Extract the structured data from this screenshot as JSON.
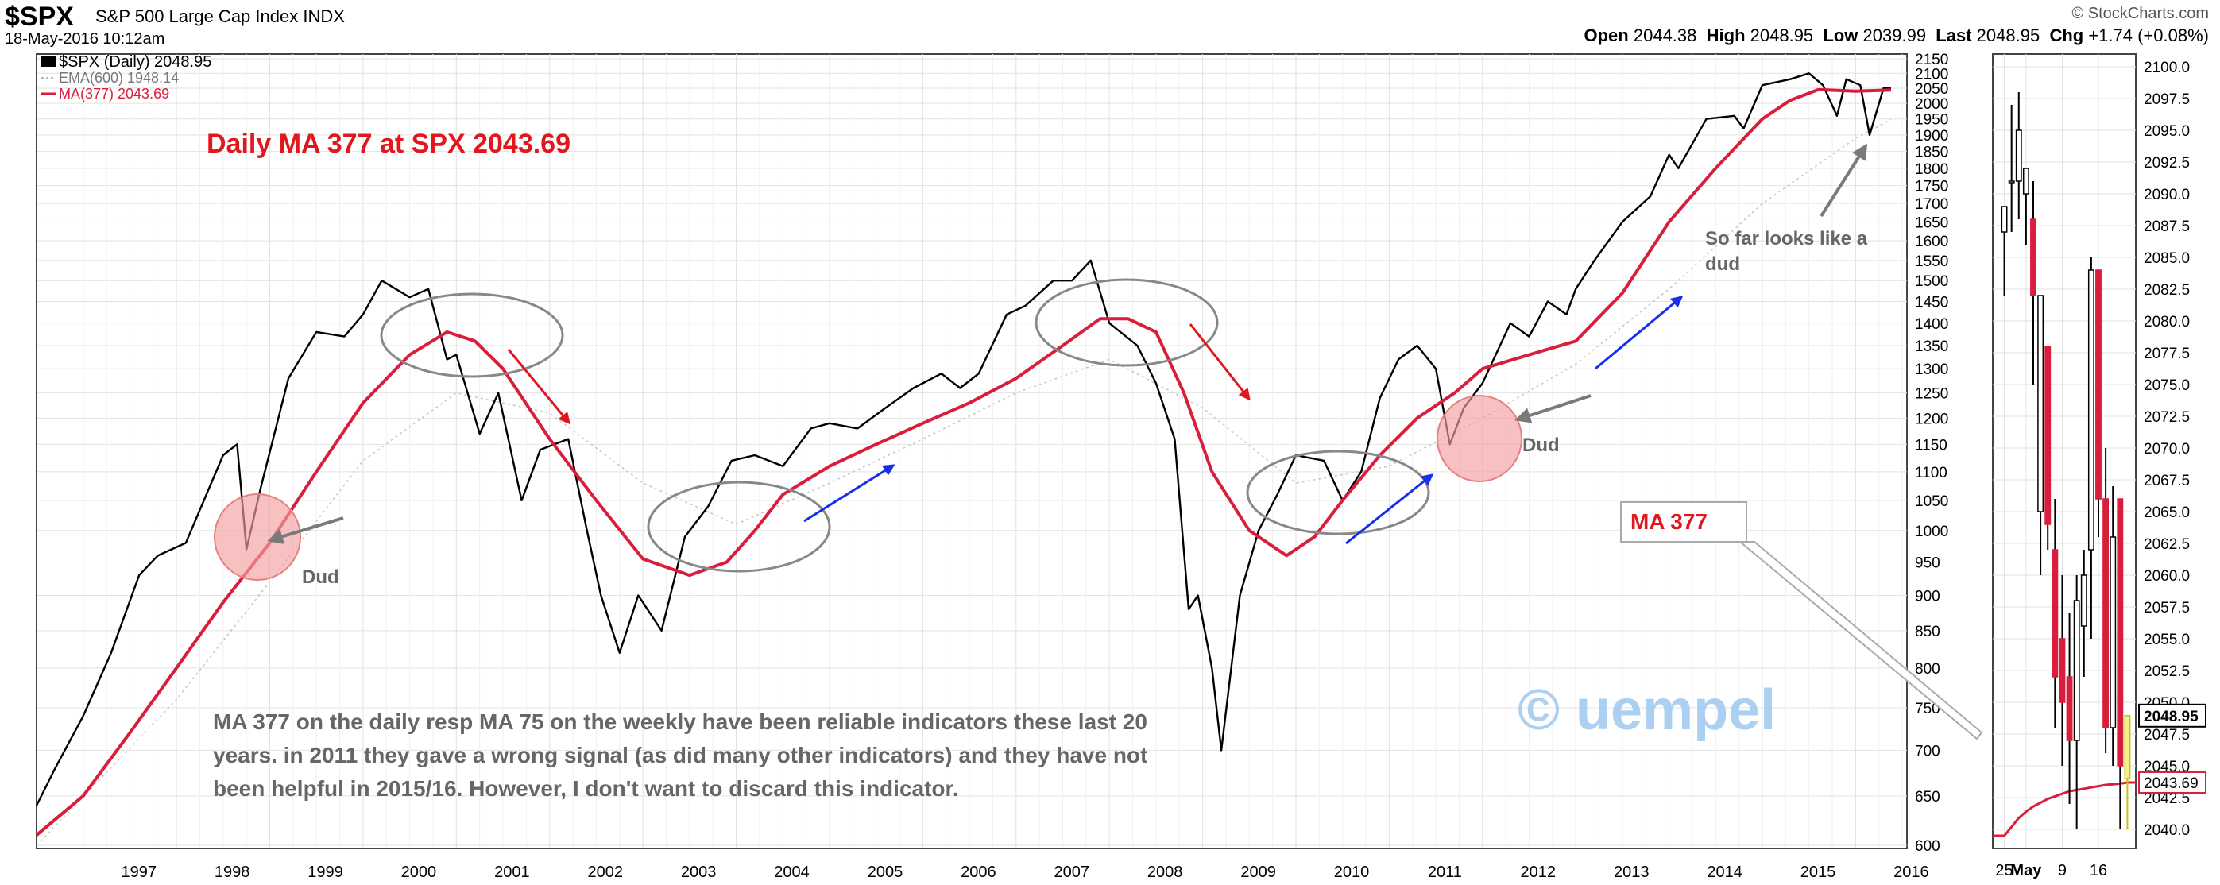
{
  "header": {
    "symbol": "$SPX",
    "name": "S&P 500 Large Cap Index",
    "exchange": "INDX",
    "date": "18-May-2016 10:12am",
    "source": "© StockCharts.com",
    "open_label": "Open",
    "open": "2044.38",
    "high_label": "High",
    "high": "2048.95",
    "low_label": "Low",
    "low": "2039.99",
    "last_label": "Last",
    "last": "2048.95",
    "chg_label": "Chg",
    "chg": "+1.74 (+0.08%)"
  },
  "colors": {
    "price": "#000000",
    "ma": "#d81e3c",
    "ema": "#c8c8c8",
    "annotation_red": "#e0181e",
    "annotation_blue": "#1530e8",
    "annotation_gray": "#7a7a7a",
    "watermark": "#9ec8f0",
    "circle_pink": "#f2a0a0",
    "down_candle": "#d81e3c",
    "up_candle": "#ffffff",
    "grid": "#e2e2e2"
  },
  "chart_data": [
    {
      "type": "line",
      "legend": [
        "$SPX (Daily) 2048.95",
        "EMA(600) 1948.14",
        "MA(377) 2043.69"
      ],
      "x_tick_labels": [
        "1997",
        "1998",
        "1999",
        "2000",
        "2001",
        "2002",
        "2003",
        "2004",
        "2005",
        "2006",
        "2007",
        "2008",
        "2009",
        "2010",
        "2011",
        "2012",
        "2013",
        "2014",
        "2015",
        "2016"
      ],
      "y_tick_labels": [
        600,
        650,
        700,
        750,
        800,
        850,
        900,
        950,
        1000,
        1050,
        1100,
        1150,
        1200,
        1250,
        1300,
        1350,
        1400,
        1450,
        1500,
        1550,
        1600,
        1650,
        1700,
        1750,
        1800,
        1850,
        1900,
        1950,
        2000,
        2050,
        2100,
        2150
      ],
      "xlim": [
        1996.5,
        2016.55
      ],
      "ylim": [
        600,
        2150
      ],
      "y_scale": "log",
      "series": [
        {
          "name": "$SPX (Daily)",
          "x": [
            1996.5,
            1996.7,
            1997.0,
            1997.3,
            1997.6,
            1997.8,
            1998.1,
            1998.5,
            1998.65,
            1998.75,
            1998.9,
            1999.2,
            1999.5,
            1999.8,
            2000.0,
            2000.2,
            2000.5,
            2000.7,
            2000.9,
            2001.0,
            2001.25,
            2001.45,
            2001.7,
            2001.9,
            2002.2,
            2002.4,
            2002.55,
            2002.75,
            2002.95,
            2003.2,
            2003.45,
            2003.7,
            2003.95,
            2004.2,
            2004.5,
            2004.8,
            2005.0,
            2005.3,
            2005.6,
            2005.9,
            2006.2,
            2006.4,
            2006.6,
            2006.9,
            2007.1,
            2007.4,
            2007.6,
            2007.8,
            2008.0,
            2008.3,
            2008.5,
            2008.7,
            2008.85,
            2008.95,
            2009.1,
            2009.2,
            2009.4,
            2009.6,
            2009.8,
            2010.0,
            2010.3,
            2010.5,
            2010.7,
            2010.9,
            2011.1,
            2011.3,
            2011.5,
            2011.65,
            2011.8,
            2012.0,
            2012.3,
            2012.5,
            2012.7,
            2012.9,
            2013.0,
            2013.2,
            2013.5,
            2013.8,
            2014.0,
            2014.1,
            2014.4,
            2014.7,
            2014.8,
            2015.0,
            2015.3,
            2015.5,
            2015.65,
            2015.8,
            2015.9,
            2016.05,
            2016.15,
            2016.3,
            2016.38
          ],
          "values": [
            640,
            680,
            740,
            820,
            930,
            960,
            980,
            1130,
            1150,
            970,
            1070,
            1280,
            1380,
            1370,
            1420,
            1500,
            1460,
            1480,
            1320,
            1330,
            1170,
            1250,
            1050,
            1140,
            1160,
            1000,
            900,
            820,
            900,
            850,
            990,
            1040,
            1120,
            1130,
            1110,
            1180,
            1190,
            1180,
            1220,
            1260,
            1290,
            1260,
            1290,
            1420,
            1440,
            1500,
            1500,
            1550,
            1400,
            1350,
            1270,
            1160,
            880,
            900,
            800,
            700,
            900,
            1000,
            1060,
            1130,
            1120,
            1050,
            1100,
            1240,
            1320,
            1350,
            1300,
            1150,
            1220,
            1270,
            1400,
            1370,
            1450,
            1420,
            1480,
            1550,
            1650,
            1720,
            1840,
            1800,
            1950,
            1960,
            1920,
            2060,
            2080,
            2100,
            2060,
            1960,
            2080,
            2060,
            1900,
            2050,
            2048.95
          ]
        },
        {
          "name": "MA(377)",
          "x": [
            1996.5,
            1997.0,
            1997.5,
            1998.0,
            1998.5,
            1999.0,
            1999.5,
            2000.0,
            2000.5,
            2000.9,
            2001.2,
            2001.5,
            2002.0,
            2002.5,
            2003.0,
            2003.5,
            2003.9,
            2004.2,
            2004.5,
            2005.0,
            2005.5,
            2006.0,
            2006.5,
            2007.0,
            2007.5,
            2007.9,
            2008.2,
            2008.5,
            2008.8,
            2009.1,
            2009.5,
            2009.9,
            2010.2,
            2010.5,
            2010.9,
            2011.3,
            2011.7,
            2012.0,
            2012.5,
            2013.0,
            2013.5,
            2014.0,
            2014.5,
            2015.0,
            2015.3,
            2015.6,
            2016.0,
            2016.38
          ],
          "values": [
            610,
            650,
            720,
            800,
            890,
            980,
            1100,
            1230,
            1330,
            1380,
            1360,
            1300,
            1160,
            1050,
            955,
            930,
            950,
            1000,
            1060,
            1110,
            1150,
            1190,
            1230,
            1280,
            1350,
            1410,
            1410,
            1380,
            1250,
            1100,
            1000,
            960,
            990,
            1050,
            1130,
            1200,
            1250,
            1300,
            1330,
            1360,
            1470,
            1650,
            1800,
            1950,
            2010,
            2045,
            2040,
            2043.69
          ]
        },
        {
          "name": "EMA(600)",
          "x": [
            1996.5,
            1998.0,
            1999.0,
            2000.0,
            2001.0,
            2002.0,
            2003.0,
            2004.0,
            2005.0,
            2006.0,
            2007.0,
            2008.0,
            2009.0,
            2010.0,
            2011.0,
            2012.0,
            2013.0,
            2014.0,
            2015.0,
            2016.0,
            2016.38
          ],
          "values": [
            600,
            760,
            920,
            1120,
            1250,
            1210,
            1080,
            1010,
            1080,
            1160,
            1250,
            1320,
            1220,
            1080,
            1110,
            1200,
            1310,
            1480,
            1700,
            1890,
            1948.14
          ]
        }
      ],
      "annotations": {
        "title": "Daily MA 377 at SPX 2043.69",
        "note": "MA 377 on the daily resp MA 75 on the weekly have been reliable indicators these last 20 years. in 2011 they gave a wrong signal (as did many other indicators) and they have not been helpful in 2015/16. However, I don't want to discard this indicator.",
        "dud_1": "Dud",
        "dud_2": "Dud",
        "dud_3": "So far looks like a dud",
        "ma_callout": "MA 377",
        "watermark": "© uempel"
      }
    },
    {
      "type": "candlestick",
      "x_tick_labels": [
        "25",
        "May",
        "9",
        "16"
      ],
      "ylim": [
        2038.5,
        2101
      ],
      "y_tick_labels": [
        "2040.0",
        "2042.5",
        "2045.0",
        "2047.5",
        "2050.0",
        "2052.5",
        "2055.0",
        "2057.5",
        "2060.0",
        "2062.5",
        "2065.0",
        "2067.5",
        "2070.0",
        "2072.5",
        "2075.0",
        "2077.5",
        "2080.0",
        "2082.5",
        "2085.0",
        "2087.5",
        "2090.0",
        "2092.5",
        "2095.0",
        "2097.5",
        "2100.0"
      ],
      "last_price_label": "2048.95",
      "ma_label": "2043.69",
      "candles": [
        {
          "open": 2087,
          "high": 2089,
          "low": 2082,
          "close": 2089
        },
        {
          "open": 2091,
          "high": 2097,
          "low": 2087,
          "close": 2091
        },
        {
          "open": 2091,
          "high": 2098,
          "low": 2088,
          "close": 2095
        },
        {
          "open": 2090,
          "high": 2092,
          "low": 2086,
          "close": 2092
        },
        {
          "open": 2088,
          "high": 2091,
          "low": 2075,
          "close": 2082
        },
        {
          "open": 2065,
          "high": 2082,
          "low": 2060,
          "close": 2082
        },
        {
          "open": 2078,
          "high": 2078,
          "low": 2062,
          "close": 2064
        },
        {
          "open": 2062,
          "high": 2066,
          "low": 2048,
          "close": 2052
        },
        {
          "open": 2055,
          "high": 2060,
          "low": 2045,
          "close": 2050
        },
        {
          "open": 2052,
          "high": 2057,
          "low": 2042,
          "close": 2047
        },
        {
          "open": 2047,
          "high": 2060,
          "low": 2040,
          "close": 2058
        },
        {
          "open": 2056,
          "high": 2062,
          "low": 2052,
          "close": 2060
        },
        {
          "open": 2062,
          "high": 2085,
          "low": 2055,
          "close": 2084
        },
        {
          "open": 2084,
          "high": 2084,
          "low": 2063,
          "close": 2066
        },
        {
          "open": 2066,
          "high": 2070,
          "low": 2046,
          "close": 2048
        },
        {
          "open": 2048,
          "high": 2067,
          "low": 2045,
          "close": 2063
        },
        {
          "open": 2066,
          "high": 2066,
          "low": 2040,
          "close": 2045
        },
        {
          "open": 2044,
          "high": 2049,
          "low": 2040,
          "close": 2048.95
        }
      ],
      "ma_values": [
        2039.5,
        2040.2,
        2040.9,
        2041.4,
        2041.8,
        2042.1,
        2042.4,
        2042.6,
        2042.8,
        2043.0,
        2043.1,
        2043.2,
        2043.3,
        2043.4,
        2043.5,
        2043.55,
        2043.6,
        2043.69
      ]
    }
  ]
}
